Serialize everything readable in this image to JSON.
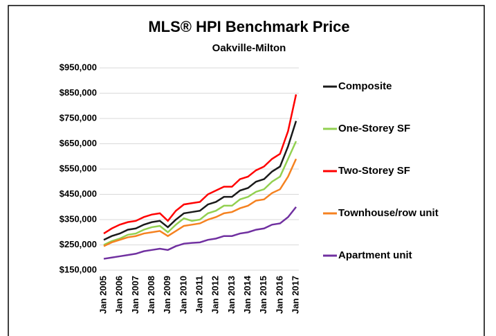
{
  "chart_data": {
    "type": "line",
    "title": "MLS® HPI Benchmark Price",
    "subtitle": "Oakville-Milton",
    "categories": [
      "Jan 2005",
      null,
      "Jan 2006",
      null,
      "Jan 2007",
      null,
      "Jan 2008",
      null,
      "Jan 2009",
      null,
      "Jan 2010",
      null,
      "Jan 2011",
      null,
      "Jan 2012",
      null,
      "Jan 2013",
      null,
      "Jan 2014",
      null,
      "Jan 2015",
      null,
      "Jan 2016",
      null,
      "Jan 2017"
    ],
    "series": [
      {
        "name": "Composite",
        "color": "#1a1a1a",
        "values": [
          270000,
          285000,
          295000,
          310000,
          315000,
          330000,
          340000,
          345000,
          320000,
          350000,
          375000,
          380000,
          385000,
          410000,
          420000,
          440000,
          440000,
          465000,
          475000,
          500000,
          510000,
          540000,
          560000,
          640000,
          740000
        ]
      },
      {
        "name": "One-Storey SF",
        "color": "#92d050",
        "values": [
          250000,
          265000,
          275000,
          290000,
          295000,
          310000,
          320000,
          325000,
          300000,
          330000,
          355000,
          345000,
          350000,
          375000,
          385000,
          405000,
          405000,
          430000,
          440000,
          460000,
          470000,
          500000,
          520000,
          590000,
          660000
        ]
      },
      {
        "name": "Two-Storey SF",
        "color": "#ff0000",
        "values": [
          295000,
          315000,
          330000,
          340000,
          345000,
          360000,
          370000,
          375000,
          345000,
          385000,
          410000,
          415000,
          420000,
          450000,
          465000,
          480000,
          480000,
          510000,
          520000,
          545000,
          560000,
          590000,
          610000,
          700000,
          845000
        ]
      },
      {
        "name": "Townhouse/row unit",
        "color": "#f58220",
        "values": [
          245000,
          260000,
          270000,
          280000,
          285000,
          295000,
          300000,
          305000,
          285000,
          305000,
          325000,
          330000,
          335000,
          350000,
          360000,
          375000,
          380000,
          395000,
          405000,
          425000,
          430000,
          455000,
          470000,
          520000,
          590000
        ]
      },
      {
        "name": "Apartment unit",
        "color": "#7030a0",
        "values": [
          195000,
          200000,
          205000,
          210000,
          215000,
          225000,
          230000,
          235000,
          230000,
          245000,
          255000,
          258000,
          260000,
          270000,
          275000,
          285000,
          285000,
          295000,
          300000,
          310000,
          315000,
          330000,
          335000,
          360000,
          400000
        ]
      }
    ],
    "ylim": [
      150000,
      950000
    ],
    "yticks": [
      {
        "value": 150000,
        "label": "$150,000"
      },
      {
        "value": 250000,
        "label": "$250,000"
      },
      {
        "value": 350000,
        "label": "$350,000"
      },
      {
        "value": 450000,
        "label": "$450,000"
      },
      {
        "value": 550000,
        "label": "$550,000"
      },
      {
        "value": 650000,
        "label": "$650,000"
      },
      {
        "value": 750000,
        "label": "$750,000"
      },
      {
        "value": 850000,
        "label": "$850,000"
      },
      {
        "value": 950000,
        "label": "$950,000"
      }
    ],
    "grid": true
  }
}
